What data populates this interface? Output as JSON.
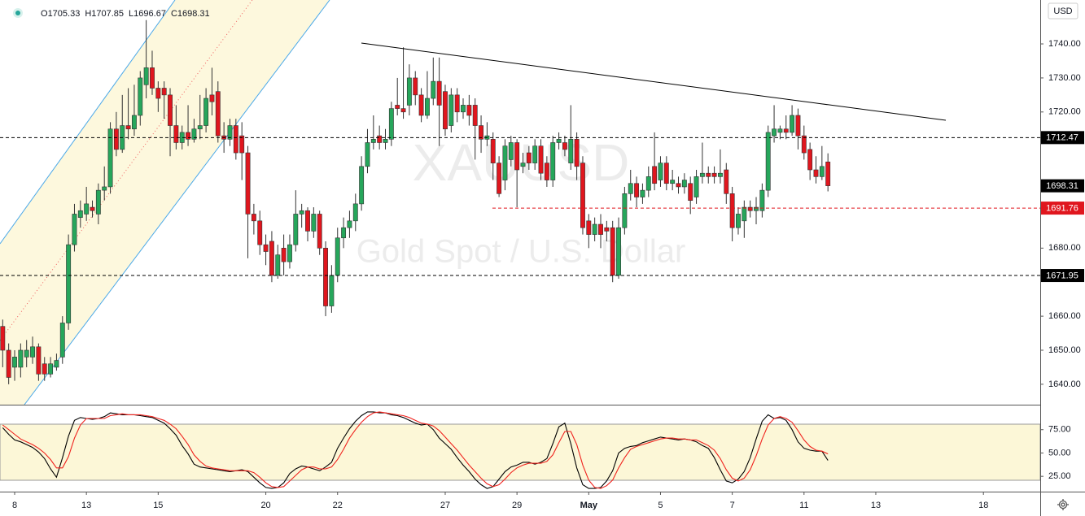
{
  "chart_data": [
    {
      "type": "candlestick",
      "title": "XAUUSD",
      "subtitle": "Gold Spot / U.S. Dollar",
      "currency": "USD",
      "legend": [
        {
          "label": "O",
          "value": 1705.33
        },
        {
          "label": "H",
          "value": 1707.85
        },
        {
          "label": "L",
          "value": 1696.67
        },
        {
          "label": "C",
          "value": 1698.31
        }
      ],
      "up_color": "#26a65b",
      "down_color": "#e0161e",
      "open": [
        1657,
        1650,
        1645,
        1645,
        1648,
        1648,
        1651,
        1646,
        1643,
        1645,
        1648,
        1658,
        1681,
        1689,
        1690,
        1692,
        1690,
        1697,
        1698,
        1715,
        1709,
        1716,
        1715,
        1719,
        1728,
        1733,
        1727,
        1727,
        1725,
        1716,
        1711,
        1714,
        1712,
        1715,
        1716,
        1725,
        1726,
        1713,
        1712,
        1716,
        1713,
        1708,
        1690,
        1688,
        1681,
        1682,
        1672,
        1680,
        1676,
        1681,
        1690,
        1691,
        1685,
        1690,
        1680,
        1663,
        1672,
        1683,
        1686,
        1688,
        1693,
        1704,
        1711,
        1713,
        1711,
        1712,
        1722,
        1721,
        1722,
        1730,
        1725,
        1719,
        1724,
        1729,
        1726,
        1716,
        1725,
        1720,
        1722,
        1722,
        1716,
        1712,
        1712,
        1705,
        1700,
        1706,
        1711,
        1704,
        1708,
        1705,
        1710,
        1705,
        1700,
        1711,
        1711,
        1705,
        1712,
        1705,
        1688,
        1684,
        1687,
        1686,
        1686,
        1672,
        1686,
        1696,
        1699,
        1695,
        1697,
        1704,
        1700,
        1705,
        1699,
        1699,
        1698,
        1699,
        1695,
        1701,
        1702,
        1702,
        1701,
        1703,
        1696,
        1686,
        1688,
        1692,
        1691,
        1691,
        1697,
        1713,
        1714,
        1715,
        1714,
        1719,
        1713,
        1709,
        1703,
        1701,
        1705.33
      ],
      "high": [
        1659,
        1652,
        1650,
        1652,
        1653,
        1654,
        1652,
        1648,
        1648,
        1649,
        1660,
        1684,
        1693,
        1694,
        1698,
        1694,
        1699,
        1704,
        1717,
        1720,
        1725,
        1727,
        1728,
        1732,
        1747,
        1738,
        1729,
        1729,
        1727,
        1722,
        1716,
        1722,
        1718,
        1725,
        1727,
        1733,
        1729,
        1717,
        1718,
        1718,
        1717,
        1710,
        1693,
        1691,
        1684,
        1685,
        1681,
        1684,
        1684,
        1697,
        1693,
        1692,
        1692,
        1691,
        1682,
        1675,
        1686,
        1689,
        1691,
        1696,
        1707,
        1715,
        1719,
        1716,
        1715,
        1723,
        1730,
        1739,
        1734,
        1732,
        1727,
        1732,
        1736,
        1736,
        1728,
        1727,
        1727,
        1724,
        1725,
        1724,
        1719,
        1717,
        1714,
        1707,
        1712,
        1713,
        1712,
        1708,
        1710,
        1712,
        1712,
        1707,
        1713,
        1714,
        1713,
        1722,
        1714,
        1707,
        1690,
        1689,
        1690,
        1688,
        1688,
        1689,
        1698,
        1703,
        1701,
        1699,
        1704,
        1714,
        1707,
        1707,
        1703,
        1701,
        1702,
        1701,
        1703,
        1711,
        1704,
        1704,
        1709,
        1705,
        1698,
        1692,
        1694,
        1694,
        1695,
        1699,
        1716,
        1722,
        1716,
        1719,
        1722,
        1721,
        1716,
        1711,
        1707,
        1710,
        1707.85
      ],
      "low": [
        1645,
        1640,
        1641,
        1642,
        1645,
        1646,
        1641,
        1641,
        1642,
        1644,
        1646,
        1656,
        1679,
        1686,
        1688,
        1689,
        1687,
        1694,
        1696,
        1707,
        1708,
        1712,
        1713,
        1716,
        1724,
        1725,
        1720,
        1718,
        1707,
        1709,
        1709,
        1710,
        1711,
        1712,
        1714,
        1719,
        1711,
        1708,
        1710,
        1706,
        1700,
        1677,
        1684,
        1678,
        1675,
        1670,
        1671,
        1672,
        1674,
        1679,
        1686,
        1682,
        1683,
        1678,
        1660,
        1661,
        1670,
        1680,
        1683,
        1685,
        1691,
        1702,
        1709,
        1709,
        1709,
        1710,
        1719,
        1718,
        1719,
        1722,
        1717,
        1718,
        1722,
        1710,
        1713,
        1714,
        1717,
        1718,
        1716,
        1706,
        1708,
        1710,
        1700,
        1695,
        1697,
        1704,
        1692,
        1702,
        1703,
        1703,
        1700,
        1698,
        1698,
        1709,
        1707,
        1703,
        1700,
        1684,
        1680,
        1682,
        1680,
        1682,
        1670,
        1671,
        1684,
        1694,
        1692,
        1693,
        1695,
        1697,
        1698,
        1697,
        1697,
        1696,
        1696,
        1690,
        1693,
        1699,
        1699,
        1699,
        1699,
        1693,
        1682,
        1684,
        1683,
        1689,
        1687,
        1689,
        1695,
        1711,
        1712,
        1712,
        1713,
        1709,
        1706,
        1700,
        1699,
        1700,
        1696.67
      ],
      "close": [
        1650,
        1642,
        1648,
        1650,
        1650,
        1651,
        1643,
        1643,
        1646,
        1647,
        1658,
        1681,
        1690,
        1691,
        1693,
        1691,
        1697,
        1698,
        1715,
        1709,
        1716,
        1715,
        1719,
        1730,
        1733,
        1727,
        1724,
        1725,
        1716,
        1711,
        1714,
        1712,
        1715,
        1716,
        1724,
        1723,
        1713,
        1712,
        1716,
        1708,
        1708,
        1690,
        1688,
        1681,
        1679,
        1672,
        1678,
        1676,
        1681,
        1690,
        1691,
        1685,
        1690,
        1680,
        1663,
        1672,
        1683,
        1686,
        1688,
        1693,
        1704,
        1711,
        1712,
        1711,
        1712,
        1721,
        1721,
        1720,
        1730,
        1725,
        1719,
        1724,
        1729,
        1722,
        1715,
        1725,
        1720,
        1722,
        1719,
        1716,
        1712,
        1713,
        1705,
        1696,
        1710,
        1711,
        1703,
        1705,
        1705,
        1710,
        1702,
        1700,
        1711,
        1712,
        1709,
        1712,
        1704,
        1686,
        1684,
        1687,
        1684,
        1685,
        1672,
        1686,
        1696,
        1699,
        1695,
        1697,
        1701,
        1699,
        1705,
        1699,
        1700,
        1698,
        1700,
        1694,
        1701,
        1702,
        1701,
        1701,
        1702,
        1696,
        1686,
        1690,
        1692,
        1691,
        1692,
        1697,
        1714,
        1715,
        1715,
        1714,
        1719,
        1713,
        1708,
        1703,
        1701,
        1704,
        1698.31
      ],
      "ylim": [
        1634,
        1752.9
      ],
      "yticks": [
        {
          "value": 1740,
          "label": "1740.00"
        },
        {
          "value": 1730,
          "label": "1730.00"
        },
        {
          "value": 1720,
          "label": "1720.00"
        },
        {
          "value": 1680,
          "label": "1680.00"
        },
        {
          "value": 1660,
          "label": "1660.00"
        },
        {
          "value": 1650,
          "label": "1650.00"
        },
        {
          "value": 1640,
          "label": "1640.00"
        }
      ],
      "price_lines": [
        {
          "value": 1712.47,
          "color": "#000000"
        },
        {
          "value": 1691.76,
          "color": "#e0161e"
        },
        {
          "value": 1671.95,
          "color": "#000000"
        }
      ],
      "last_price": 1698.31,
      "xlim": [
        -0.45,
        173.5
      ],
      "xticks": [
        {
          "value": 2,
          "label": "8"
        },
        {
          "value": 14,
          "label": "13"
        },
        {
          "value": 26,
          "label": "15"
        },
        {
          "value": 44,
          "label": "20"
        },
        {
          "value": 56,
          "label": "22"
        },
        {
          "value": 74,
          "label": "27"
        },
        {
          "value": 86,
          "label": "29"
        },
        {
          "value": 98,
          "label": "May"
        },
        {
          "value": 110,
          "label": "5"
        },
        {
          "value": 122,
          "label": "7"
        },
        {
          "value": 134,
          "label": "11"
        },
        {
          "value": 146,
          "label": "13"
        },
        {
          "value": 164,
          "label": "18"
        }
      ]
    },
    {
      "type": "line",
      "series": [
        {
          "color": "#000000",
          "values": [
            77,
            70,
            64,
            62,
            59,
            56,
            51,
            44,
            33,
            24,
            45,
            68,
            85,
            88,
            87,
            86,
            87,
            89,
            93,
            92,
            91,
            91,
            91,
            90,
            89,
            88,
            85,
            82,
            76,
            69,
            58,
            49,
            38,
            35,
            34,
            33,
            32,
            31,
            30,
            31,
            32,
            30,
            24,
            18,
            13,
            12,
            13,
            18,
            28,
            33,
            36,
            35,
            33,
            31,
            35,
            40,
            55,
            66,
            76,
            84,
            90,
            94,
            94,
            93,
            93,
            91,
            90,
            88,
            85,
            82,
            80,
            81,
            75,
            66,
            60,
            54,
            45,
            37,
            30,
            22,
            16,
            12,
            14,
            22,
            30,
            35,
            37,
            40,
            40,
            38,
            40,
            44,
            60,
            78,
            82,
            60,
            34,
            16,
            12,
            12,
            13,
            20,
            31,
            50,
            55,
            57,
            58,
            61,
            63,
            65,
            67,
            66,
            65,
            64,
            65,
            64,
            62,
            58,
            55,
            45,
            32,
            20,
            18,
            22,
            30,
            45,
            65,
            84,
            91,
            87,
            88,
            85,
            75,
            62,
            55,
            53,
            52,
            52,
            42
          ]
        },
        {
          "color": "#f0231e",
          "values": [
            80,
            75,
            70,
            65,
            62,
            59,
            55,
            50,
            43,
            34,
            34,
            46,
            66,
            80,
            87,
            87,
            87,
            87,
            90,
            91,
            92,
            91,
            91,
            91,
            90,
            89,
            87,
            85,
            81,
            76,
            68,
            59,
            48,
            41,
            36,
            34,
            33,
            32,
            31,
            31,
            31,
            31,
            29,
            24,
            18,
            14,
            13,
            14,
            20,
            26,
            32,
            35,
            35,
            33,
            33,
            35,
            43,
            54,
            66,
            75,
            83,
            89,
            93,
            94,
            93,
            92,
            91,
            90,
            88,
            85,
            82,
            81,
            79,
            74,
            67,
            60,
            53,
            45,
            37,
            30,
            23,
            17,
            14,
            16,
            22,
            29,
            34,
            37,
            39,
            39,
            39,
            41,
            48,
            61,
            73,
            73,
            59,
            37,
            21,
            13,
            12,
            15,
            21,
            34,
            45,
            54,
            57,
            59,
            61,
            63,
            65,
            66,
            66,
            65,
            65,
            64,
            64,
            61,
            58,
            53,
            44,
            32,
            23,
            20,
            23,
            32,
            47,
            65,
            80,
            87,
            89,
            87,
            83,
            74,
            64,
            57,
            53,
            52,
            49
          ]
        }
      ],
      "ylim": [
        8.6,
        100.9
      ],
      "yticks": [
        {
          "value": 75,
          "label": "75.00"
        },
        {
          "value": 50,
          "label": "50.00"
        },
        {
          "value": 25,
          "label": "25.00"
        }
      ]
    }
  ]
}
